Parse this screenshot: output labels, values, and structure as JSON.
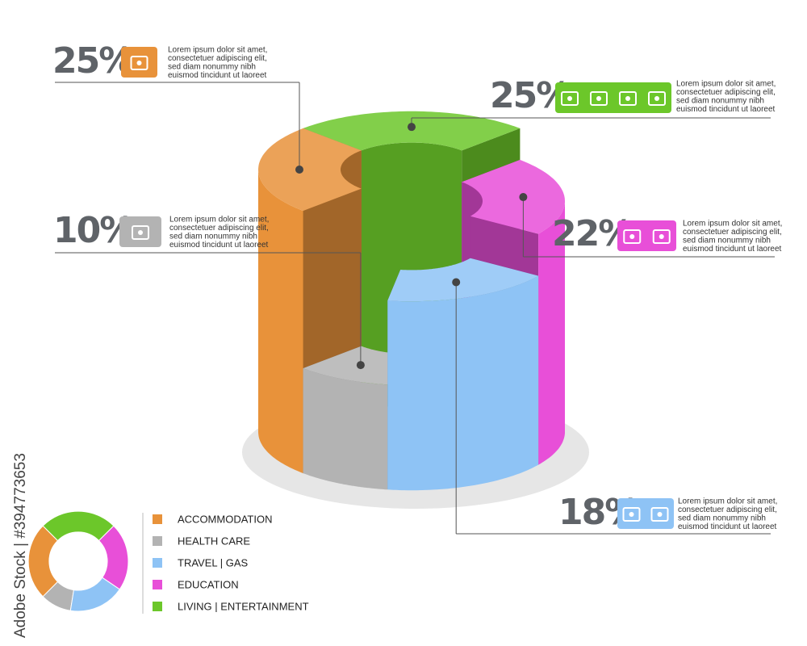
{
  "chart_data": {
    "type": "pie",
    "categories": [
      "ACCOMMODATION",
      "HEALTH CARE",
      "TRAVEL |  GAS",
      "EDUCATION",
      "LIVING | ENTERTAINMENT"
    ],
    "values": [
      25,
      10,
      18,
      22,
      25
    ],
    "value_labels": [
      "25%",
      "10%",
      "18%",
      "22%",
      "25%"
    ],
    "colors": [
      "#e8923a",
      "#b3b3b3",
      "#8ec3f5",
      "#e84fd8",
      "#6cc72a"
    ],
    "descriptions": [
      [
        "Lorem ipsum dolor sit amet,",
        "consectetuer adipiscing elit,",
        "sed diam nonummy nibh",
        "euismod tincidunt ut laoreet"
      ],
      [
        "Lorem ipsum dolor sit amet,",
        "consectetuer adipiscing elit,",
        "sed diam nonummy nibh",
        "euismod tincidunt ut laoreet"
      ],
      [
        "Lorem ipsum dolor sit amet,",
        "consectetuer adipiscing elit,",
        "sed diam nonummy nibh",
        "euismod tincidunt ut laoreet"
      ],
      [
        "Lorem ipsum dolor sit amet,",
        "consectetuer adipiscing elit,",
        "sed diam nonummy nibh",
        "euismod tincidunt ut laoreet"
      ],
      [
        "Lorem ipsum dolor sit amet,",
        "consectetuer adipiscing elit,",
        "sed diam nonummy nibh",
        "euismod tincidunt ut laoreet"
      ]
    ],
    "watermark": "Adobe Stock | #394773653"
  }
}
